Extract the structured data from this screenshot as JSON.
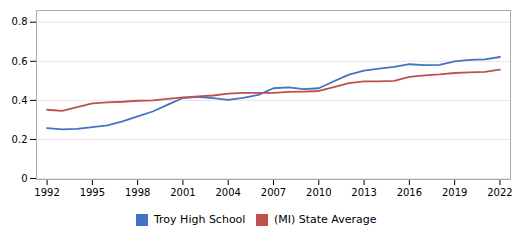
{
  "chart_data": {
    "type": "line",
    "x": [
      1992,
      1993,
      1994,
      1995,
      1996,
      1997,
      1998,
      1999,
      2000,
      2001,
      2002,
      2003,
      2004,
      2005,
      2006,
      2007,
      2008,
      2009,
      2010,
      2011,
      2012,
      2013,
      2014,
      2015,
      2016,
      2017,
      2018,
      2019,
      2020,
      2021,
      2022
    ],
    "series": [
      {
        "name": "Troy High School",
        "color": "#4472c4",
        "values": [
          0.258,
          0.252,
          0.254,
          0.263,
          0.272,
          0.293,
          0.318,
          0.343,
          0.378,
          0.412,
          0.418,
          0.412,
          0.402,
          0.413,
          0.428,
          0.462,
          0.467,
          0.458,
          0.462,
          0.498,
          0.532,
          0.552,
          0.562,
          0.572,
          0.585,
          0.58,
          0.582,
          0.6,
          0.607,
          0.61,
          0.622
        ]
      },
      {
        "name": "(MI) State Average",
        "color": "#c0504d",
        "values": [
          0.352,
          0.346,
          0.365,
          0.385,
          0.39,
          0.393,
          0.398,
          0.4,
          0.408,
          0.415,
          0.42,
          0.425,
          0.435,
          0.438,
          0.438,
          0.438,
          0.443,
          0.445,
          0.448,
          0.468,
          0.488,
          0.497,
          0.497,
          0.5,
          0.52,
          0.528,
          0.533,
          0.54,
          0.543,
          0.546,
          0.557
        ]
      }
    ],
    "xlim": [
      1991.3,
      2022.7
    ],
    "xticks": [
      1992,
      1995,
      1998,
      2001,
      2004,
      2007,
      2010,
      2013,
      2016,
      2019,
      2022
    ],
    "ylim": [
      -0.005,
      0.86
    ],
    "yticks": [
      0,
      0.2,
      0.4,
      0.6,
      0.8
    ],
    "grid": true,
    "legend": "bottom"
  }
}
